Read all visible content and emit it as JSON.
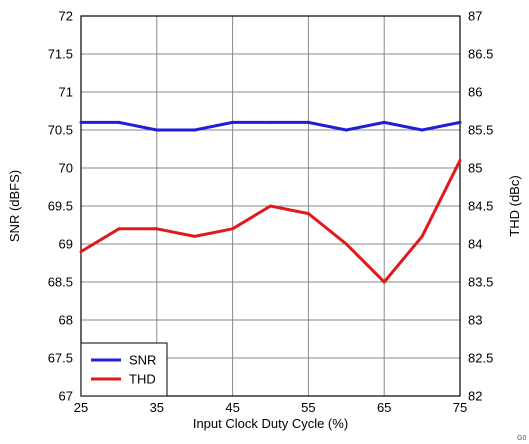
{
  "chart_data": {
    "type": "line",
    "title": "",
    "xlabel": "Input Clock Duty Cycle (%)",
    "ylabel": "SNR (dBFS)",
    "y2label": "THD (dBc)",
    "xlim": [
      25,
      75
    ],
    "ylim": [
      67,
      72
    ],
    "y2lim": [
      82,
      87
    ],
    "xticks": [
      "25",
      "35",
      "45",
      "55",
      "65",
      "75"
    ],
    "yticks": [
      "67",
      "67.5",
      "68",
      "68.5",
      "69",
      "69.5",
      "70",
      "70.5",
      "71",
      "71.5",
      "72"
    ],
    "y2ticks": [
      "82",
      "82.5",
      "83",
      "83.5",
      "84",
      "84.5",
      "85",
      "85.5",
      "86",
      "86.5",
      "87"
    ],
    "grid": true,
    "legend_position": "bottom-left",
    "series": [
      {
        "name": "SNR",
        "axis": "left",
        "color": "#1f1fd6",
        "x": [
          25,
          30,
          35,
          40,
          45,
          50,
          55,
          60,
          65,
          70,
          75
        ],
        "y": [
          70.6,
          70.6,
          70.5,
          70.5,
          70.6,
          70.6,
          70.6,
          70.5,
          70.6,
          70.5,
          70.6
        ]
      },
      {
        "name": "THD",
        "axis": "right",
        "color": "#e01a1a",
        "x": [
          25,
          30,
          35,
          40,
          45,
          50,
          55,
          60,
          65,
          70,
          75
        ],
        "y": [
          83.9,
          84.2,
          84.2,
          84.1,
          84.2,
          84.5,
          84.4,
          84.0,
          83.5,
          84.1,
          85.1
        ]
      }
    ],
    "corner_code": "G0"
  }
}
